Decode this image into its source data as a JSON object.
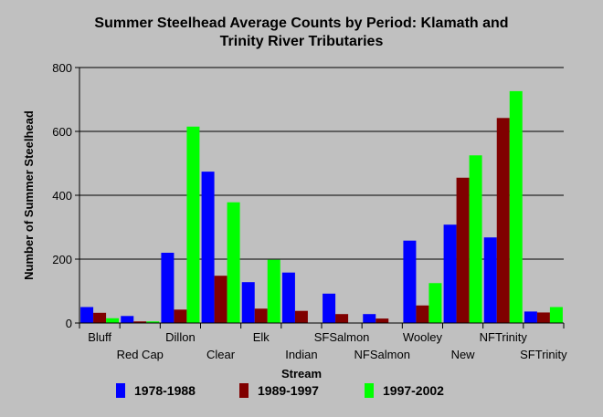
{
  "chart_data": {
    "type": "bar",
    "title_lines": [
      "Summer Steelhead Average Counts by Period: Klamath and",
      "Trinity River Tributaries"
    ],
    "xlabel": "Stream",
    "ylabel": "Number of Summer Steelhead",
    "ylim": [
      0,
      800
    ],
    "yticks": [
      0,
      200,
      400,
      600,
      800
    ],
    "categories": [
      "Bluff",
      "Red Cap",
      "Dillon",
      "Clear",
      "Elk",
      "Indian",
      "SFSalmon",
      "NFSalmon",
      "Wooley",
      "New",
      "NFTrinity",
      "SFTrinity"
    ],
    "series": [
      {
        "name": "1978-1988",
        "color": "#0000ff",
        "values": [
          50,
          22,
          220,
          474,
          128,
          158,
          92,
          28,
          258,
          308,
          268,
          36
        ]
      },
      {
        "name": "1989-1997",
        "color": "#800000",
        "values": [
          32,
          5,
          42,
          148,
          45,
          38,
          28,
          14,
          55,
          455,
          642,
          33
        ]
      },
      {
        "name": "1997-2002",
        "color": "#00ff00",
        "values": [
          15,
          5,
          615,
          378,
          198,
          0,
          0,
          0,
          125,
          525,
          726,
          50
        ]
      }
    ],
    "grid": "horizontal",
    "legend_position": "bottom"
  }
}
